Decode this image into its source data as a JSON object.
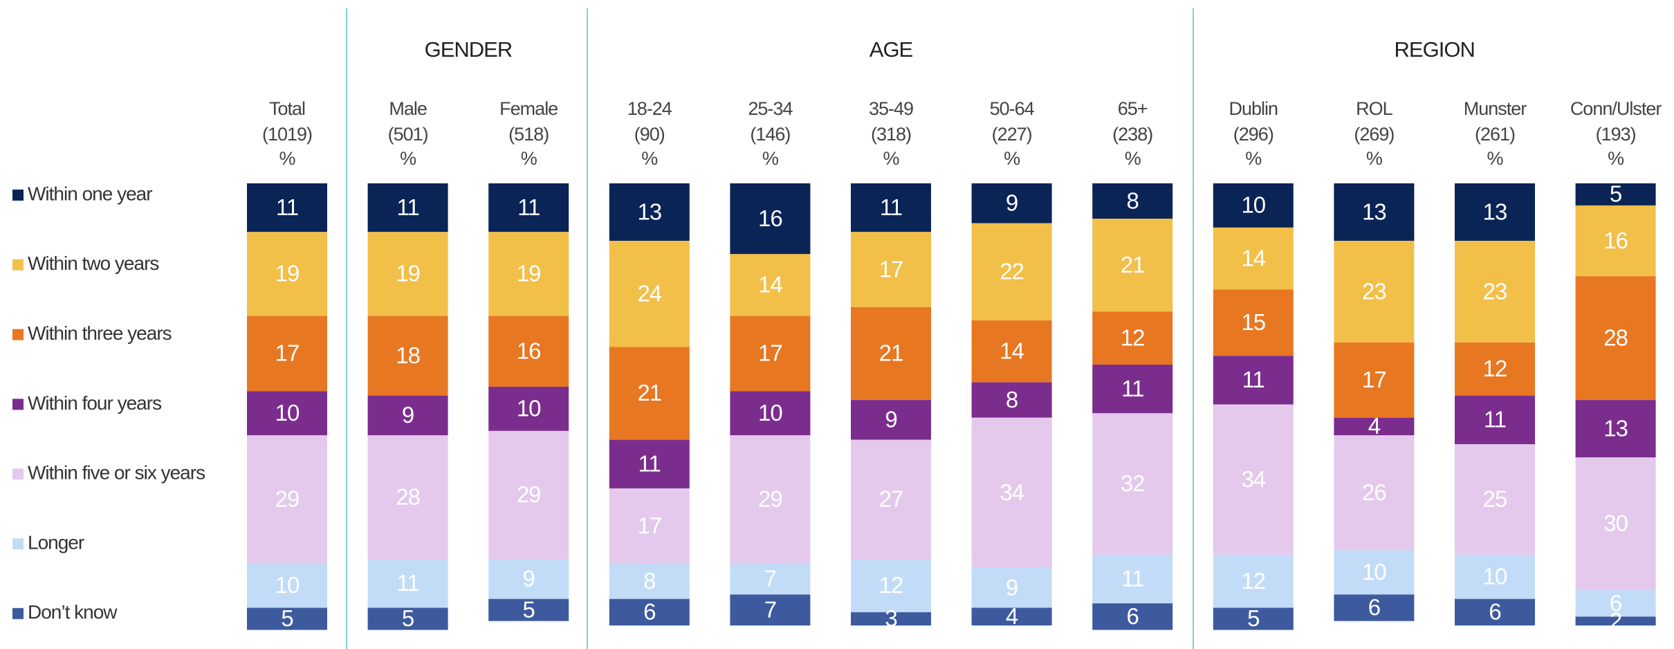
{
  "chart_data": {
    "type": "stacked_bar",
    "groups": [
      "GENDER",
      "AGE",
      "REGION"
    ],
    "categories": [
      "Total",
      "Male",
      "Female",
      "18-24",
      "25-34",
      "35-49",
      "50-64",
      "65+",
      "Dublin",
      "ROL",
      "Munster",
      "Conn/Ulster"
    ],
    "bases": [
      "(1019)",
      "(501)",
      "(518)",
      "(90)",
      "(146)",
      "(318)",
      "(227)",
      "(238)",
      "(296)",
      "(269)",
      "(261)",
      "(193)"
    ],
    "unit": "%",
    "ylim": [
      0,
      100
    ],
    "series": [
      {
        "name": "Within one year",
        "color": "#0b2456",
        "values": [
          11,
          11,
          11,
          13,
          16,
          11,
          9,
          8,
          10,
          13,
          13,
          5
        ]
      },
      {
        "name": "Within two years",
        "color": "#f2bf49",
        "values": [
          19,
          19,
          19,
          24,
          14,
          17,
          22,
          21,
          14,
          23,
          23,
          16
        ]
      },
      {
        "name": "Within three years",
        "color": "#e87722",
        "values": [
          17,
          18,
          16,
          21,
          17,
          21,
          14,
          12,
          15,
          17,
          12,
          28
        ]
      },
      {
        "name": "Within four years",
        "color": "#7b2d8e",
        "values": [
          10,
          9,
          10,
          11,
          10,
          9,
          8,
          11,
          11,
          4,
          11,
          13
        ]
      },
      {
        "name": "Within five or six years",
        "color": "#e4c9ec",
        "values": [
          29,
          28,
          29,
          17,
          29,
          27,
          34,
          32,
          34,
          26,
          25,
          30
        ]
      },
      {
        "name": "Longer",
        "color": "#c2dcf7",
        "values": [
          10,
          11,
          9,
          8,
          7,
          12,
          9,
          11,
          12,
          10,
          10,
          6
        ]
      },
      {
        "name": "Don’t know",
        "color": "#3d5a9e",
        "values": [
          5,
          5,
          5,
          6,
          7,
          3,
          4,
          6,
          5,
          6,
          6,
          2
        ]
      }
    ]
  }
}
